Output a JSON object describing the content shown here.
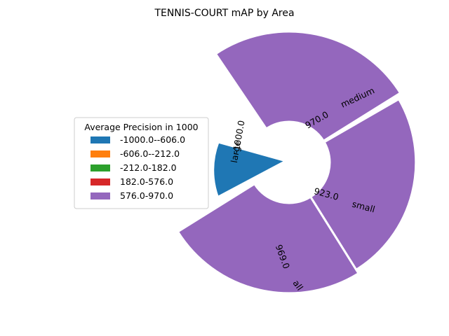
{
  "chart_data": {
    "type": "polar_bar",
    "title": "TENNIS-COURT mAP by Area",
    "categories": [
      "all",
      "small",
      "medium",
      "large"
    ],
    "values": [
      969.0,
      923.0,
      970.0,
      -1000.0
    ],
    "value_labels": [
      "969.0",
      "923.0",
      "970.0",
      "-1000.0"
    ],
    "legend": {
      "title": "Average Precision in 1000",
      "placement": "left",
      "entries": [
        {
          "label": "-1000.0--606.0",
          "color": "#1f77b4"
        },
        {
          "label": "-606.0--212.0",
          "color": "#ff7f0e"
        },
        {
          "label": "-212.0-182.0",
          "color": "#2ca02c"
        },
        {
          "label": "182.0-576.0",
          "color": "#d62728"
        },
        {
          "label": "576.0-970.0",
          "color": "#9467bd"
        }
      ]
    },
    "bar_colors": [
      "#9467bd",
      "#9467bd",
      "#9467bd",
      "#1f77b4"
    ],
    "grid": false
  }
}
